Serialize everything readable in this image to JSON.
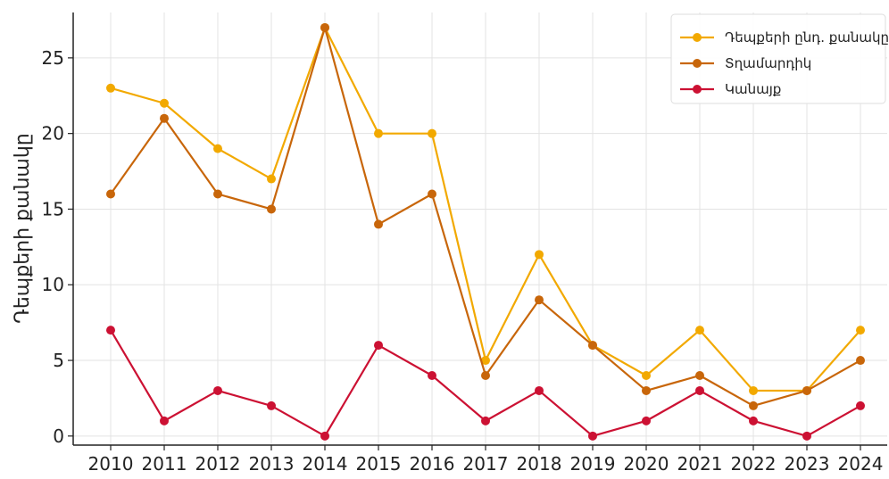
{
  "chart_data": {
    "type": "line",
    "title": "",
    "xlabel": "",
    "ylabel": "Դեպքերի քանակը",
    "x": [
      2010,
      2011,
      2012,
      2013,
      2014,
      2015,
      2016,
      2017,
      2018,
      2019,
      2020,
      2021,
      2022,
      2023,
      2024
    ],
    "x_tick_labels": [
      "2010",
      "2011",
      "2012",
      "2013",
      "2014",
      "2015",
      "2016",
      "2017",
      "2018",
      "2019",
      "2020",
      "2021",
      "2022",
      "2023",
      "2024"
    ],
    "y_ticks": [
      0,
      5,
      10,
      15,
      20,
      25
    ],
    "y_tick_labels": [
      "0",
      "5",
      "10",
      "15",
      "20",
      "25"
    ],
    "ylim": [
      -0.6,
      28
    ],
    "grid": true,
    "legend_position": "top-right",
    "series": [
      {
        "name": "Դեպքերի ընդ. քանակը",
        "color": "#f2a900",
        "values": [
          23,
          22,
          19,
          17,
          27,
          20,
          20,
          5,
          12,
          6,
          4,
          7,
          3,
          3,
          7
        ]
      },
      {
        "name": "Տղամարդիկ",
        "color": "#c8660a",
        "values": [
          16,
          21,
          16,
          15,
          27,
          14,
          16,
          4,
          9,
          6,
          3,
          4,
          2,
          3,
          5
        ]
      },
      {
        "name": "Կանայք",
        "color": "#cc1133",
        "values": [
          7,
          1,
          3,
          2,
          0,
          6,
          4,
          1,
          3,
          0,
          1,
          3,
          1,
          0,
          2
        ]
      }
    ]
  }
}
